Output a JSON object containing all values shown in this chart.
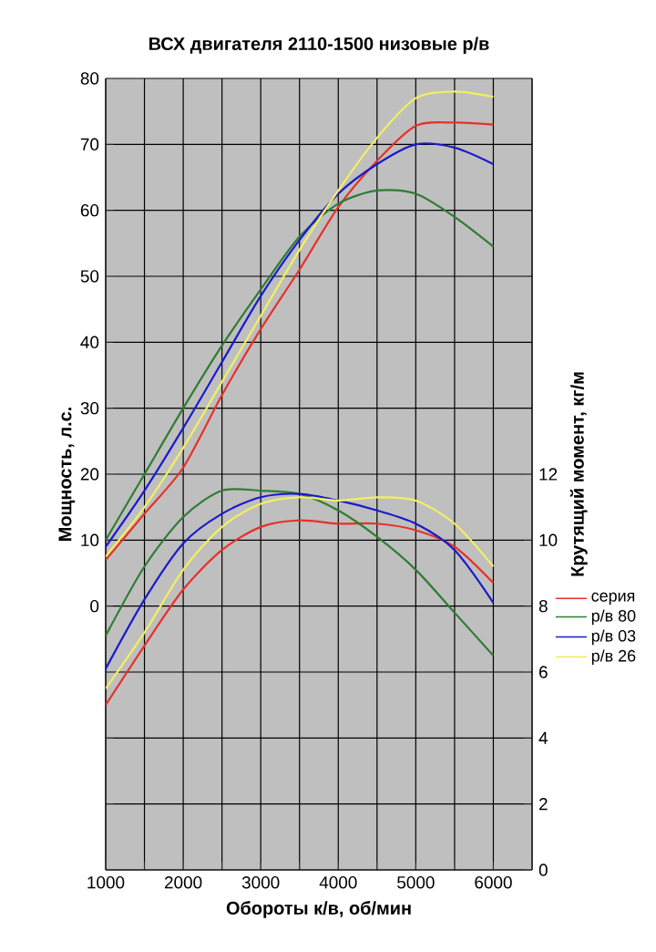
{
  "chart_data": {
    "type": "line",
    "title": "ВСХ двигателя 2110-1500 низовые р/в",
    "xlabel": "Обороты к/в, об/мин",
    "ylabel": "Мощность, л.с.",
    "y2label": "Крутящий момент, кг/м",
    "x": [
      1000,
      1500,
      2000,
      2500,
      3000,
      3500,
      4000,
      4500,
      5000,
      5500,
      6000
    ],
    "series": [
      {
        "name": "серия",
        "color": "#e8302a",
        "values": [
          7,
          14,
          21,
          32,
          42,
          51,
          60.5,
          67.5,
          72.8,
          73.3,
          73
        ]
      },
      {
        "name": "р/в 80",
        "color": "#2e7d32",
        "values": [
          10,
          20,
          30,
          39.5,
          48,
          56,
          61,
          63,
          62.5,
          59,
          54.5
        ]
      },
      {
        "name": "р/в 03",
        "color": "#1a1acc",
        "values": [
          9,
          17.5,
          27,
          37,
          47,
          55.5,
          62.5,
          67,
          70,
          69.5,
          67
        ]
      },
      {
        "name": "р/в 26",
        "color": "#f2f060",
        "values": [
          7.5,
          15,
          24,
          34,
          44,
          54,
          63,
          71,
          77,
          78,
          77.2
        ]
      },
      {
        "axis": "y2",
        "color": "#e8302a",
        "values": [
          5.0,
          6.8,
          8.5,
          9.7,
          10.4,
          10.6,
          10.5,
          10.5,
          10.3,
          9.8,
          8.7
        ]
      },
      {
        "axis": "y2",
        "color": "#2e7d32",
        "values": [
          7.1,
          9.2,
          10.7,
          11.5,
          11.5,
          11.4,
          10.9,
          10.1,
          9.1,
          7.8,
          6.5
        ]
      },
      {
        "axis": "y2",
        "color": "#1a1acc",
        "values": [
          6.1,
          8.2,
          9.9,
          10.8,
          11.3,
          11.4,
          11.2,
          10.9,
          10.5,
          9.7,
          8.1
        ]
      },
      {
        "axis": "y2",
        "color": "#f2f060",
        "values": [
          5.5,
          7.2,
          9.1,
          10.4,
          11.1,
          11.3,
          11.2,
          11.3,
          11.2,
          10.5,
          9.2
        ]
      }
    ],
    "xlim": [
      1000,
      6500
    ],
    "xticks": [
      1000,
      {
        "value": 1500,
        "label": null
      },
      2000,
      {
        "value": 2500,
        "label": null
      },
      3000,
      {
        "value": 3500,
        "label": null
      },
      4000,
      {
        "value": 4500,
        "label": null
      },
      5000,
      {
        "value": 5500,
        "label": null
      },
      6000,
      {
        "value": 6500,
        "label": null
      }
    ],
    "ylim": [
      -40,
      80
    ],
    "yticks": [
      {
        "value": -40,
        "label": null
      },
      {
        "value": -30,
        "label": null
      },
      {
        "value": -20,
        "label": null
      },
      {
        "value": -10,
        "label": null
      },
      0,
      10,
      20,
      30,
      40,
      50,
      60,
      70,
      80
    ],
    "y2lim": [
      0,
      24
    ],
    "y2ticks": [
      0,
      2,
      4,
      6,
      8,
      10,
      12
    ],
    "grid": true,
    "legend": "right",
    "marker": "none",
    "line_style": "solid"
  }
}
